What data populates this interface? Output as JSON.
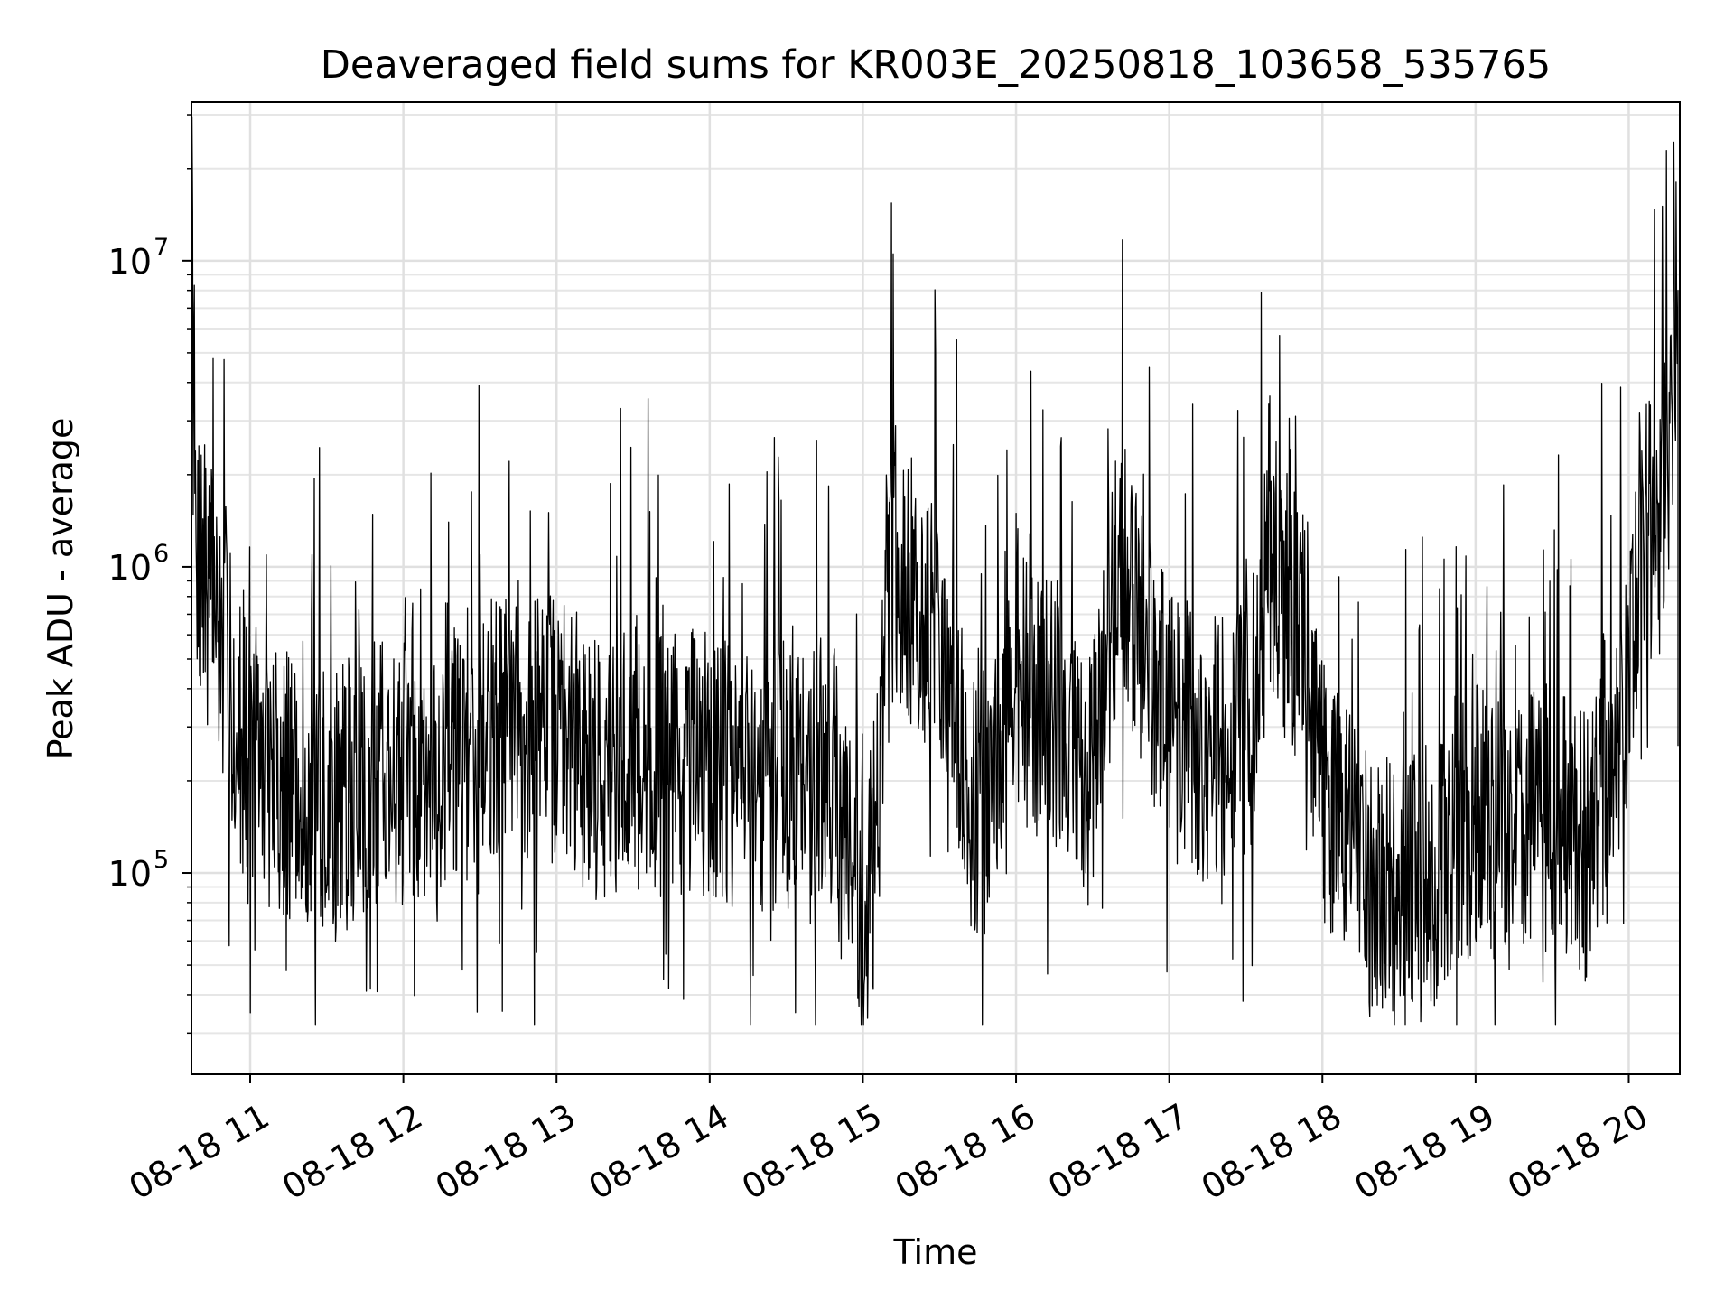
{
  "chart_data": {
    "type": "line",
    "title": "Deaveraged field sums for KR003E_20250818_103658_535765",
    "xlabel": "Time",
    "ylabel": "Peak ADU - average",
    "yscale": "log",
    "xlim": [
      "2025-08-18 10:37",
      "2025-08-18 20:20"
    ],
    "ylim": [
      22000,
      33000000
    ],
    "xticks": [
      {
        "value": "2025-08-18 11:00",
        "label": "08-18 11"
      },
      {
        "value": "2025-08-18 12:00",
        "label": "08-18 12"
      },
      {
        "value": "2025-08-18 13:00",
        "label": "08-18 13"
      },
      {
        "value": "2025-08-18 14:00",
        "label": "08-18 14"
      },
      {
        "value": "2025-08-18 15:00",
        "label": "08-18 15"
      },
      {
        "value": "2025-08-18 16:00",
        "label": "08-18 16"
      },
      {
        "value": "2025-08-18 17:00",
        "label": "08-18 17"
      },
      {
        "value": "2025-08-18 18:00",
        "label": "08-18 18"
      },
      {
        "value": "2025-08-18 19:00",
        "label": "08-18 19"
      },
      {
        "value": "2025-08-18 20:00",
        "label": "08-18 20"
      }
    ],
    "yticks": [
      {
        "value": 100000,
        "base": "10",
        "exp": "5"
      },
      {
        "value": 1000000,
        "base": "10",
        "exp": "6"
      },
      {
        "value": 10000000,
        "base": "10",
        "exp": "7"
      }
    ],
    "grid": true,
    "line_color": "#000000",
    "series": [
      {
        "x": [
          "2025-08-18 10:37",
          "2025-08-18 10:38",
          "2025-08-18 10:40",
          "2025-08-18 10:42",
          "2025-08-18 10:45",
          "2025-08-18 10:50",
          "2025-08-18 10:55",
          "2025-08-18 11:00",
          "2025-08-18 11:10",
          "2025-08-18 11:20",
          "2025-08-18 11:30",
          "2025-08-18 11:45",
          "2025-08-18 12:00",
          "2025-08-18 12:15",
          "2025-08-18 12:30",
          "2025-08-18 12:45",
          "2025-08-18 13:00",
          "2025-08-18 13:15",
          "2025-08-18 13:30",
          "2025-08-18 13:45",
          "2025-08-18 14:00",
          "2025-08-18 14:15",
          "2025-08-18 14:30",
          "2025-08-18 14:45",
          "2025-08-18 14:50",
          "2025-08-18 15:00",
          "2025-08-18 15:05",
          "2025-08-18 15:10",
          "2025-08-18 15:20",
          "2025-08-18 15:30",
          "2025-08-18 15:40",
          "2025-08-18 15:50",
          "2025-08-18 16:00",
          "2025-08-18 16:15",
          "2025-08-18 16:30",
          "2025-08-18 16:40",
          "2025-08-18 16:50",
          "2025-08-18 17:00",
          "2025-08-18 17:15",
          "2025-08-18 17:30",
          "2025-08-18 17:40",
          "2025-08-18 17:50",
          "2025-08-18 18:00",
          "2025-08-18 18:15",
          "2025-08-18 18:30",
          "2025-08-18 18:45",
          "2025-08-18 19:00",
          "2025-08-18 19:15",
          "2025-08-18 19:30",
          "2025-08-18 19:45",
          "2025-08-18 19:55",
          "2025-08-18 20:00",
          "2025-08-18 20:05",
          "2025-08-18 20:10",
          "2025-08-18 20:15",
          "2025-08-18 20:19"
        ],
        "y": [
          24000000,
          1500000,
          1000000,
          900000,
          800000,
          500000,
          300000,
          250000,
          200000,
          180000,
          160000,
          200000,
          220000,
          230000,
          280000,
          300000,
          300000,
          230000,
          250000,
          230000,
          220000,
          200000,
          210000,
          200000,
          160000,
          70000,
          120000,
          1000000,
          800000,
          600000,
          200000,
          150000,
          400000,
          350000,
          200000,
          1000000,
          600000,
          300000,
          250000,
          300000,
          1000000,
          600000,
          200000,
          100000,
          80000,
          100000,
          150000,
          130000,
          150000,
          120000,
          250000,
          500000,
          1400000,
          1300000,
          1500000,
          8000000
        ]
      }
    ]
  }
}
